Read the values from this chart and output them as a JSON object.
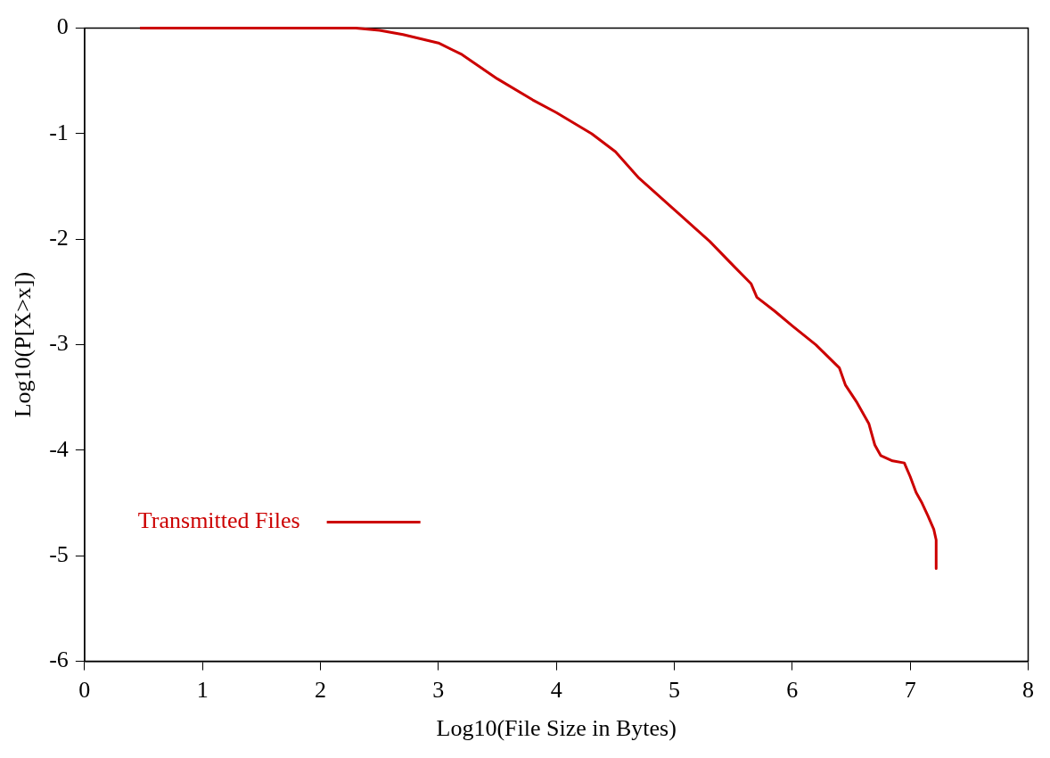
{
  "chart_data": {
    "type": "line",
    "xlabel": "Log10(File Size in Bytes)",
    "ylabel": "Log10(P[X>x])",
    "xlim": [
      0,
      8
    ],
    "ylim": [
      -6,
      0
    ],
    "xticks": [
      0,
      1,
      2,
      3,
      4,
      5,
      6,
      7,
      8
    ],
    "yticks": [
      -6,
      -5,
      -4,
      -3,
      -2,
      -1,
      0
    ],
    "grid": false,
    "legend": "left",
    "marker": "none",
    "line_style": "solid",
    "series": [
      {
        "name": "Transmitted Files",
        "color": "#cc0000",
        "x": [
          0.47,
          1.0,
          1.5,
          2.0,
          2.3,
          2.5,
          2.7,
          2.85,
          3.0,
          3.2,
          3.5,
          3.8,
          4.0,
          4.3,
          4.5,
          4.7,
          5.0,
          5.3,
          5.5,
          5.65,
          5.7,
          5.85,
          6.0,
          6.2,
          6.4,
          6.45,
          6.55,
          6.65,
          6.7,
          6.75,
          6.85,
          6.95,
          7.0,
          7.05,
          7.1,
          7.15,
          7.2,
          7.22,
          7.22
        ],
        "values": [
          0,
          0,
          0,
          0,
          0,
          -0.02,
          -0.06,
          -0.1,
          -0.14,
          -0.25,
          -0.48,
          -0.68,
          -0.8,
          -1.0,
          -1.17,
          -1.42,
          -1.72,
          -2.02,
          -2.25,
          -2.42,
          -2.55,
          -2.68,
          -2.82,
          -3.0,
          -3.22,
          -3.38,
          -3.55,
          -3.75,
          -3.95,
          -4.05,
          -4.1,
          -4.12,
          -4.25,
          -4.4,
          -4.5,
          -4.62,
          -4.75,
          -4.85,
          -5.12
        ]
      }
    ]
  }
}
